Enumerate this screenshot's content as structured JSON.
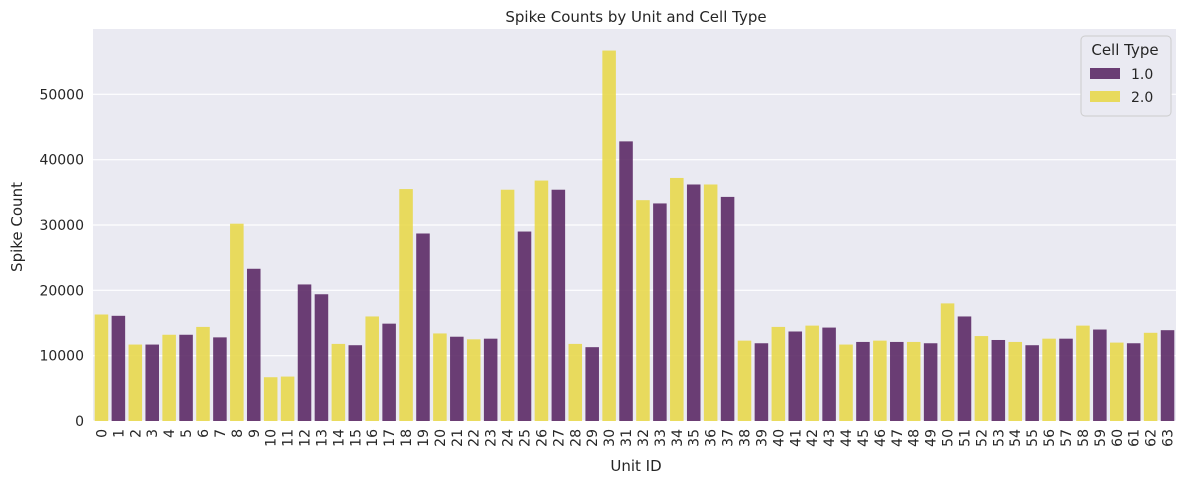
{
  "chart_data": {
    "type": "bar",
    "title": "Spike Counts by Unit and Cell Type",
    "xlabel": "Unit ID",
    "ylabel": "Spike Count",
    "ylim": [
      0,
      60000
    ],
    "yticks": [
      0,
      10000,
      20000,
      30000,
      40000,
      50000
    ],
    "grid": true,
    "legend": {
      "title": "Cell Type",
      "placement": "top-right"
    },
    "colors": {
      "1.0": "#5c2a66",
      "2.0": "#e8d84d"
    },
    "categories": [
      "0",
      "1",
      "2",
      "3",
      "4",
      "5",
      "6",
      "7",
      "8",
      "9",
      "10",
      "11",
      "12",
      "13",
      "14",
      "15",
      "16",
      "17",
      "18",
      "19",
      "20",
      "21",
      "22",
      "23",
      "24",
      "25",
      "26",
      "27",
      "28",
      "29",
      "30",
      "31",
      "32",
      "33",
      "34",
      "35",
      "36",
      "37",
      "38",
      "39",
      "40",
      "41",
      "42",
      "43",
      "44",
      "45",
      "46",
      "47",
      "48",
      "49",
      "50",
      "51",
      "52",
      "53",
      "54",
      "55",
      "56",
      "57",
      "58",
      "59",
      "60",
      "61",
      "62",
      "63"
    ],
    "series": [
      {
        "name": "1.0",
        "values": [
          null,
          16100,
          null,
          11700,
          null,
          13200,
          null,
          12800,
          null,
          23300,
          null,
          null,
          20900,
          19400,
          null,
          11600,
          null,
          14900,
          null,
          28700,
          null,
          12900,
          null,
          12600,
          null,
          29000,
          null,
          35400,
          null,
          11300,
          null,
          42800,
          null,
          33300,
          null,
          36200,
          null,
          34300,
          null,
          11900,
          null,
          13700,
          null,
          14300,
          null,
          12100,
          null,
          12100,
          null,
          11900,
          null,
          16000,
          null,
          12400,
          null,
          11600,
          null,
          12600,
          null,
          14000,
          null,
          11900,
          null,
          13900
        ]
      },
      {
        "name": "2.0",
        "values": [
          16300,
          null,
          11700,
          null,
          13200,
          null,
          14400,
          null,
          30200,
          null,
          6700,
          6800,
          null,
          null,
          11800,
          null,
          16000,
          null,
          35500,
          null,
          13400,
          null,
          12500,
          null,
          35400,
          null,
          36800,
          null,
          11800,
          null,
          56700,
          null,
          33800,
          null,
          37200,
          null,
          36200,
          null,
          12300,
          null,
          14400,
          null,
          14600,
          null,
          11700,
          null,
          12300,
          null,
          12100,
          null,
          18000,
          null,
          13000,
          null,
          12100,
          null,
          12600,
          null,
          14600,
          null,
          12000,
          null,
          13500,
          null
        ]
      }
    ]
  }
}
